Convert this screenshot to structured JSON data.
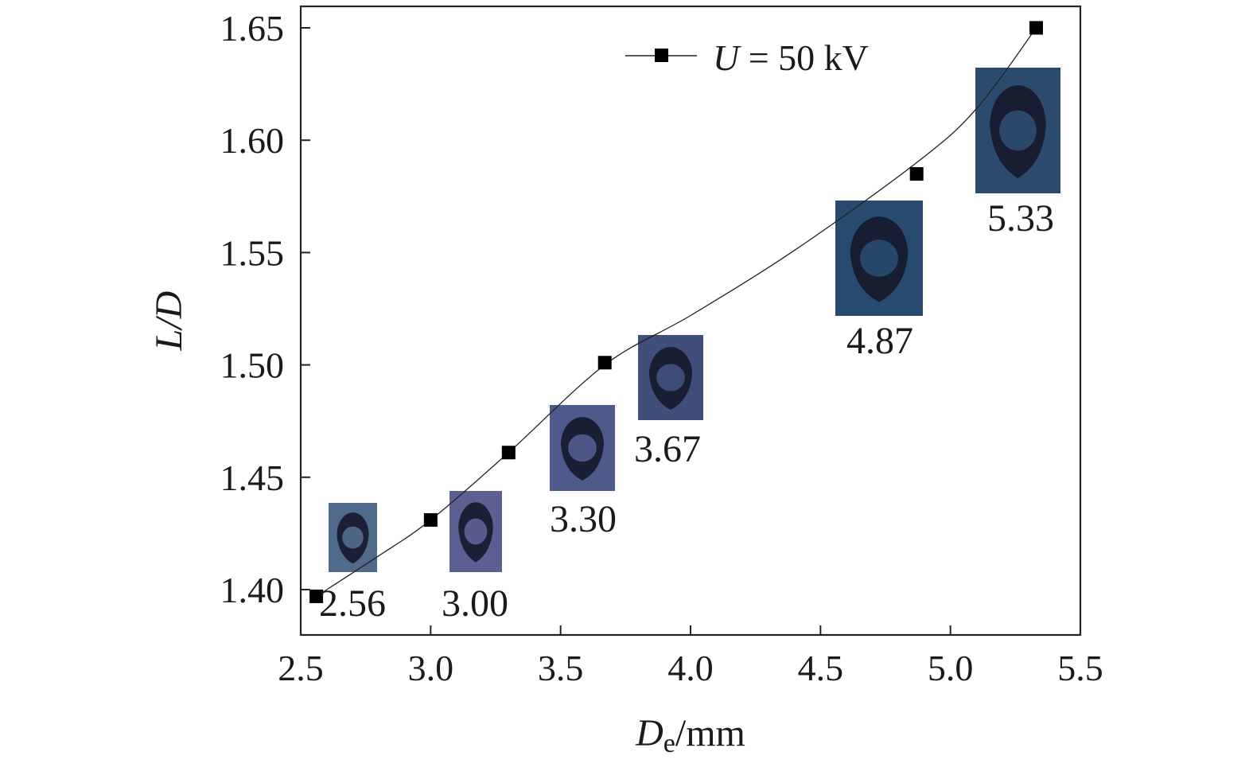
{
  "chart_data": {
    "type": "scatter",
    "title": "",
    "xlabel": {
      "main": "D",
      "sub": "e",
      "unit": "/mm"
    },
    "ylabel": "L/D",
    "xlim": [
      2.5,
      5.5
    ],
    "ylim": [
      1.38,
      1.66
    ],
    "x_ticks": [
      "2.5",
      "3.0",
      "3.5",
      "4.0",
      "4.5",
      "5.0",
      "5.5"
    ],
    "y_ticks": [
      "1.40",
      "1.45",
      "1.50",
      "1.55",
      "1.60",
      "1.65"
    ],
    "grid": false,
    "legend_position": "top-right",
    "series": [
      {
        "name": "U = 50 kV",
        "marker": "square",
        "color": "#000000",
        "x": [
          2.56,
          3.0,
          3.3,
          3.67,
          4.87,
          5.33
        ],
        "y": [
          1.397,
          1.431,
          1.461,
          1.501,
          1.585,
          1.65
        ]
      }
    ],
    "fit_curve": {
      "x": [
        2.56,
        2.8,
        3.0,
        3.3,
        3.67,
        4.0,
        4.4,
        4.87,
        5.1,
        5.33
      ],
      "y": [
        1.397,
        1.415,
        1.431,
        1.461,
        1.5,
        1.522,
        1.551,
        1.59,
        1.614,
        1.65
      ]
    },
    "annotations": [
      {
        "text": "2.56",
        "x": 2.56,
        "image_color": "#4f6a8a"
      },
      {
        "text": "3.00",
        "x": 3.0,
        "image_color": "#5b5f92"
      },
      {
        "text": "3.30",
        "x": 3.3,
        "image_color": "#4e5a8c"
      },
      {
        "text": "3.67",
        "x": 3.67,
        "image_color": "#3f4f7a"
      },
      {
        "text": "4.87",
        "x": 4.87,
        "image_color": "#284a6e"
      },
      {
        "text": "5.33",
        "x": 5.33,
        "image_color": "#2c4a6e"
      }
    ]
  }
}
